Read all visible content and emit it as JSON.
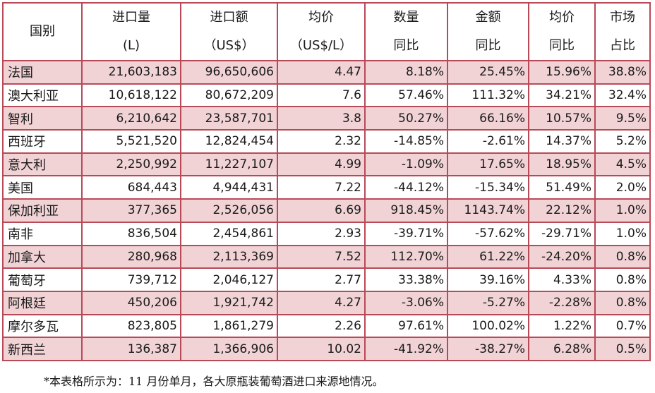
{
  "table": {
    "headers": [
      {
        "line1": "国别",
        "line2": ""
      },
      {
        "line1": "进口量",
        "line2": "(L)"
      },
      {
        "line1": "进口额",
        "line2": "（US$）"
      },
      {
        "line1": "均价",
        "line2": "（US$/L）"
      },
      {
        "line1": "数量",
        "line2": "同比"
      },
      {
        "line1": "金额",
        "line2": "同比"
      },
      {
        "line1": "均价",
        "line2": "同比"
      },
      {
        "line1": "市场",
        "line2": "占比"
      }
    ],
    "rows": [
      [
        "法国",
        "21,603,183",
        "96,650,606",
        "4.47",
        "8.18%",
        "25.45%",
        "15.96%",
        "38.8%"
      ],
      [
        "澳大利亚",
        "10,618,122",
        "80,672,209",
        "7.6",
        "57.46%",
        "111.32%",
        "34.21%",
        "32.4%"
      ],
      [
        "智利",
        "6,210,642",
        "23,587,701",
        "3.8",
        "50.27%",
        "66.16%",
        "10.57%",
        "9.5%"
      ],
      [
        "西班牙",
        "5,521,520",
        "12,824,454",
        "2.32",
        "-14.85%",
        "-2.61%",
        "14.37%",
        "5.2%"
      ],
      [
        "意大利",
        "2,250,992",
        "11,227,107",
        "4.99",
        "-1.09%",
        "17.65%",
        "18.95%",
        "4.5%"
      ],
      [
        "美国",
        "684,443",
        "4,944,431",
        "7.22",
        "-44.12%",
        "-15.34%",
        "51.49%",
        "2.0%"
      ],
      [
        "保加利亚",
        "377,365",
        "2,526,056",
        "6.69",
        "918.45%",
        "1143.74%",
        "22.12%",
        "1.0%"
      ],
      [
        "南非",
        "836,504",
        "2,454,861",
        "2.93",
        "-39.71%",
        "-57.62%",
        "-29.71%",
        "1.0%"
      ],
      [
        "加拿大",
        "280,968",
        "2,113,369",
        "7.52",
        "112.70%",
        "61.22%",
        "-24.20%",
        "0.8%"
      ],
      [
        "葡萄牙",
        "739,712",
        "2,046,127",
        "2.77",
        "33.38%",
        "39.16%",
        "4.33%",
        "0.8%"
      ],
      [
        "阿根廷",
        "450,206",
        "1,921,742",
        "4.27",
        "-3.06%",
        "-5.27%",
        "-2.28%",
        "0.8%"
      ],
      [
        "摩尔多瓦",
        "823,805",
        "1,861,279",
        "2.26",
        "97.61%",
        "100.02%",
        "1.22%",
        "0.7%"
      ],
      [
        "新西兰",
        "136,387",
        "1,366,906",
        "10.02",
        "-41.92%",
        "-38.27%",
        "6.28%",
        "0.5%"
      ]
    ],
    "shade_color": "#f1d3d6",
    "border_color": "#b84a58"
  },
  "footnote": "*本表格所示为：11 月份单月，各大原瓶装葡萄酒进口来源地情况。"
}
